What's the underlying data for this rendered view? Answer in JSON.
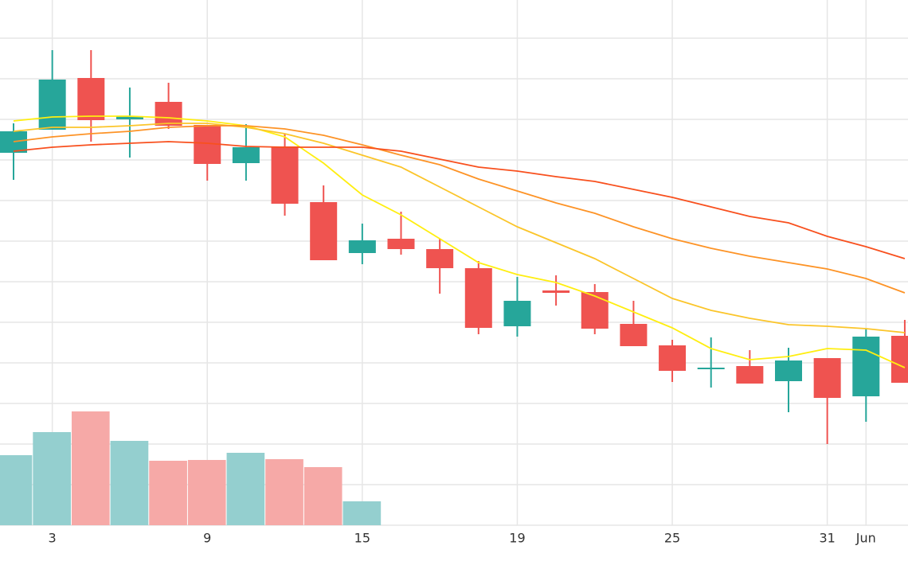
{
  "chart_data": {
    "type": "candlestick",
    "categories": [
      null,
      "3",
      null,
      null,
      null,
      "9",
      null,
      null,
      null,
      "15",
      null,
      null,
      null,
      "19",
      null,
      null,
      null,
      "25",
      null,
      null,
      null,
      "31",
      "Jun",
      null
    ],
    "open": [
      468,
      497,
      562,
      510,
      532,
      503,
      455,
      476,
      406,
      342,
      360,
      347,
      323,
      250,
      295,
      293,
      253,
      226,
      196,
      200,
      181,
      210,
      162,
      238
    ],
    "high": [
      505,
      597,
      597,
      550,
      556,
      503,
      504,
      492,
      427,
      379,
      394,
      360,
      332,
      312,
      314,
      303,
      282,
      233,
      236,
      220,
      223,
      210,
      247,
      258
    ],
    "low": [
      434,
      497,
      482,
      462,
      498,
      433,
      433,
      389,
      333,
      328,
      340,
      291,
      240,
      237,
      276,
      240,
      225,
      180,
      173,
      178,
      142,
      102,
      130,
      179
    ],
    "close": [
      495,
      560,
      509,
      514,
      502,
      454,
      475,
      404,
      333,
      358,
      347,
      323,
      248,
      282,
      292,
      247,
      225,
      194,
      198,
      178,
      207,
      160,
      237,
      179
    ],
    "up_color": "#26a69a",
    "down_color": "#ef5350",
    "volume": [
      88,
      117,
      143,
      106,
      81,
      82,
      91,
      83,
      73,
      30,
      null,
      null,
      null,
      null,
      null,
      null,
      null,
      null,
      null,
      null,
      null,
      null,
      null,
      null
    ],
    "volume_up_color": "#94cfcf",
    "volume_down_color": "#f6a9a7",
    "series": [
      {
        "color": "#ffee10",
        "values": [
          508,
          513,
          514,
          514,
          512,
          508,
          502,
          488,
          455,
          415,
          390,
          360,
          330,
          315,
          305,
          288,
          268,
          248,
          222,
          208,
          212,
          222,
          220,
          198
        ]
      },
      {
        "color": "#fbc52a",
        "values": [
          495,
          500,
          500,
          502,
          505,
          505,
          500,
          492,
          480,
          465,
          450,
          425,
          400,
          375,
          355,
          335,
          310,
          285,
          270,
          260,
          252,
          250,
          247,
          242
        ]
      },
      {
        "color": "#fd9326",
        "values": [
          482,
          488,
          492,
          495,
          500,
          502,
          502,
          498,
          490,
          478,
          465,
          453,
          435,
          420,
          405,
          392,
          375,
          360,
          348,
          338,
          330,
          322,
          310,
          292
        ]
      },
      {
        "color": "#f8501e",
        "values": [
          470,
          475,
          478,
          480,
          482,
          480,
          476,
          475,
          475,
          475,
          470,
          460,
          450,
          445,
          438,
          432,
          422,
          412,
          400,
          388,
          380,
          363,
          350,
          335
        ]
      }
    ],
    "ylim": [
      0,
      660
    ],
    "yticks": [
      0,
      51,
      102,
      153,
      204,
      255,
      306,
      357,
      408,
      459,
      510,
      561,
      612
    ],
    "grid": true
  }
}
